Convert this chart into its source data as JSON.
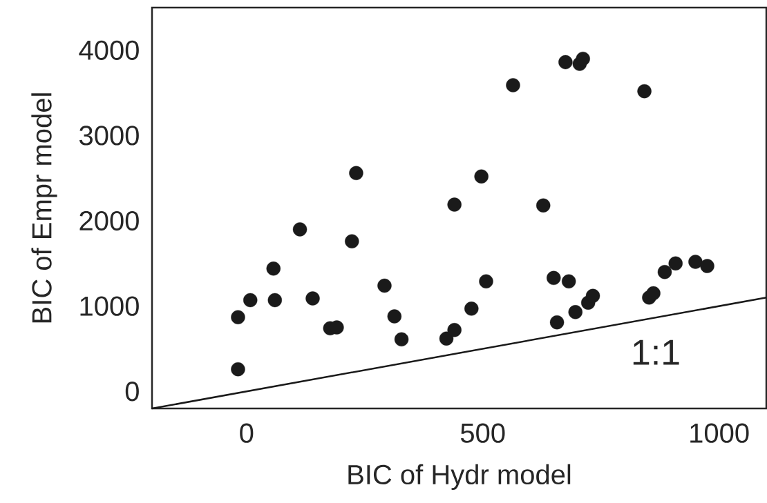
{
  "chart_data": {
    "type": "scatter",
    "xlabel": "BIC of Hydr model",
    "ylabel": "BIC of Empr model",
    "xlim": [
      -200,
      1100
    ],
    "ylim": [
      -200,
      4500
    ],
    "xticks": [
      0,
      500,
      1000
    ],
    "yticks": [
      0,
      1000,
      2000,
      3000,
      4000
    ],
    "series": [
      {
        "color": "#1a1a1a",
        "marker": "circle",
        "x": [
          -18,
          8,
          57,
          60,
          113,
          140,
          177,
          191,
          223,
          232,
          -18,
          292,
          313,
          328,
          423,
          440,
          440,
          476,
          497,
          507,
          564,
          628,
          650,
          657,
          675,
          682,
          696,
          705,
          712,
          723,
          733,
          842,
          852,
          861,
          885,
          908,
          950,
          975
        ],
        "values": [
          870,
          1070,
          1440,
          1070,
          1900,
          1090,
          740,
          750,
          1760,
          2560,
          260,
          1240,
          880,
          610,
          620,
          720,
          2190,
          970,
          2520,
          1290,
          3590,
          2180,
          1330,
          810,
          3860,
          1290,
          930,
          3840,
          3900,
          1040,
          1120,
          3520,
          1100,
          1150,
          1400,
          1500,
          1520,
          1470
        ]
      },
      {
        "type": "line",
        "color": "#1a1a1a",
        "marker": "none",
        "x": [
          -200,
          1100
        ],
        "values": [
          -200,
          1100
        ]
      }
    ],
    "annotations": [
      "1:1"
    ]
  }
}
